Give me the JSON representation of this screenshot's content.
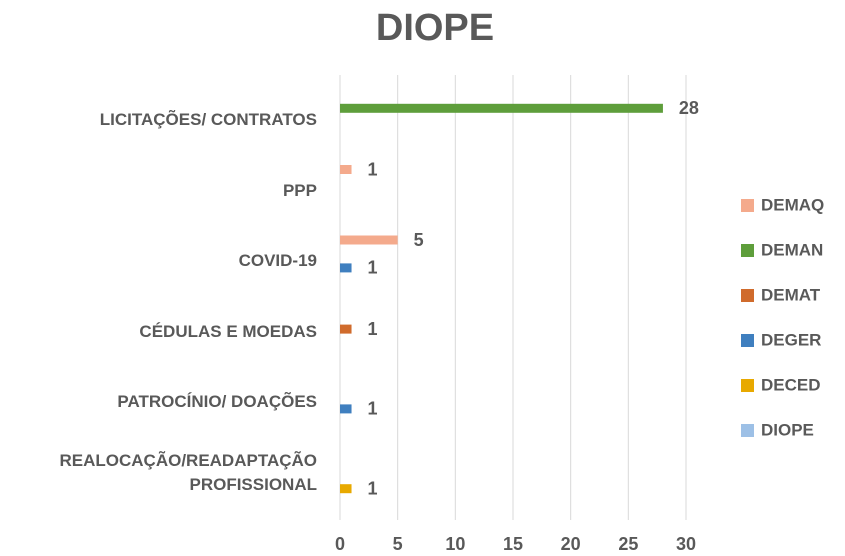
{
  "chart_data": {
    "type": "bar",
    "orientation": "horizontal",
    "title": "DIOPE",
    "categories": [
      "LICITAÇÕES/ CONTRATOS",
      "PPP",
      "COVID-19",
      "CÉDULAS E MOEDAS",
      "PATROCÍNIO/ DOAÇÕES",
      "REALOCAÇÃO/READAPTAÇÃO PROFISSIONAL"
    ],
    "series": [
      {
        "name": "DEMAQ",
        "color": "#f4aa8c",
        "values": [
          null,
          1,
          5,
          null,
          null,
          null
        ]
      },
      {
        "name": "DEMAN",
        "color": "#5e9e3b",
        "values": [
          28,
          null,
          null,
          null,
          null,
          null
        ]
      },
      {
        "name": "DEMAT",
        "color": "#d06b2c",
        "values": [
          null,
          null,
          null,
          1,
          null,
          null
        ]
      },
      {
        "name": "DEGER",
        "color": "#3f7fbf",
        "values": [
          null,
          null,
          1,
          null,
          1,
          null
        ]
      },
      {
        "name": "DECED",
        "color": "#e8a900",
        "values": [
          null,
          null,
          null,
          null,
          null,
          1
        ]
      },
      {
        "name": "DIOPE",
        "color": "#9dc0e6",
        "values": [
          null,
          null,
          null,
          null,
          null,
          null
        ]
      }
    ],
    "xlim": [
      0,
      30
    ],
    "xticks": [
      0,
      5,
      10,
      15,
      20,
      25,
      30
    ],
    "grid": true,
    "legend": "right"
  }
}
